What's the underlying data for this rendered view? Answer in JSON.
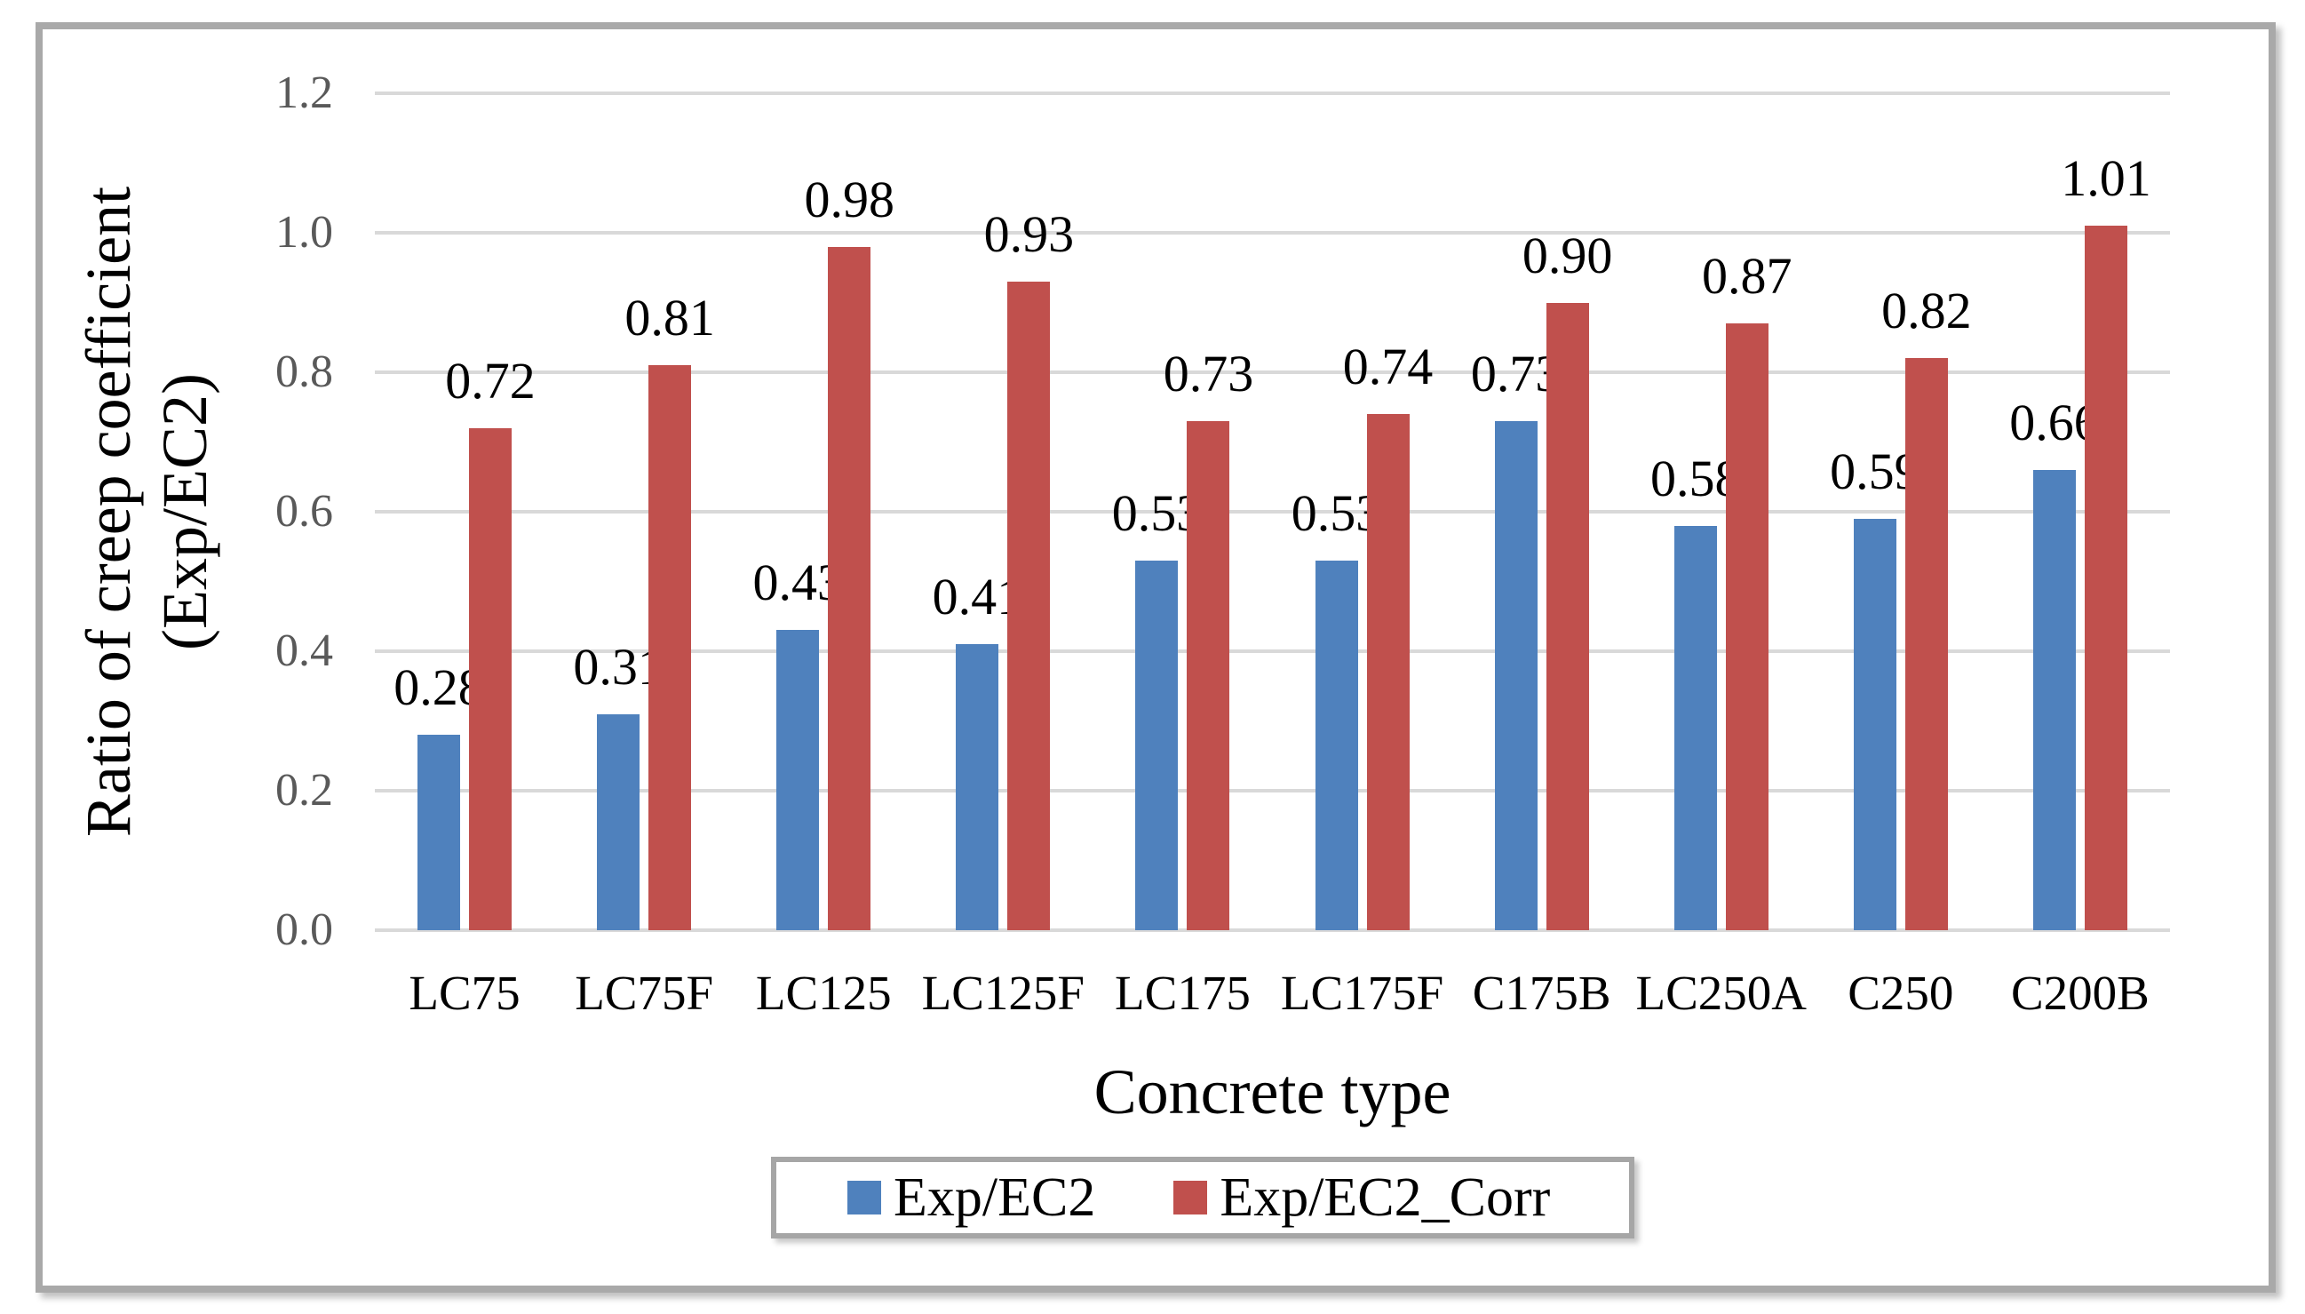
{
  "chart_data": {
    "type": "bar",
    "title": "",
    "categories": [
      "LC75",
      "LC75F",
      "LC125",
      "LC125F",
      "LC175",
      "LC175F",
      "C175B",
      "LC250A",
      "C250",
      "C200B"
    ],
    "series": [
      {
        "name": "Exp/EC2",
        "color": "#4F81BD",
        "values": [
          0.28,
          0.31,
          0.43,
          0.41,
          0.53,
          0.53,
          0.73,
          0.58,
          0.59,
          0.66
        ]
      },
      {
        "name": "Exp/EC2_Corr",
        "color": "#C0504D",
        "values": [
          0.72,
          0.81,
          0.98,
          0.93,
          0.73,
          0.74,
          0.9,
          0.87,
          0.82,
          1.01
        ]
      }
    ],
    "xlabel": "Concrete type",
    "ylabel_lines": [
      "Ratio of creep coefficient",
      "(Exp/EC2)"
    ],
    "ylim": [
      0,
      1.2
    ],
    "yticks": [
      "0.0",
      "0.2",
      "0.4",
      "0.6",
      "0.8",
      "1.0",
      "1.2"
    ],
    "grid": true,
    "legend_position": "bottom",
    "data_labels": true,
    "data_label_decimals": 2
  },
  "colors": {
    "gridline": "#D9D9D9",
    "tick_label": "#595959",
    "figure_border": "#A9A9A9",
    "legend_border": "#A6A6A6",
    "background": "#FFFFFF"
  }
}
